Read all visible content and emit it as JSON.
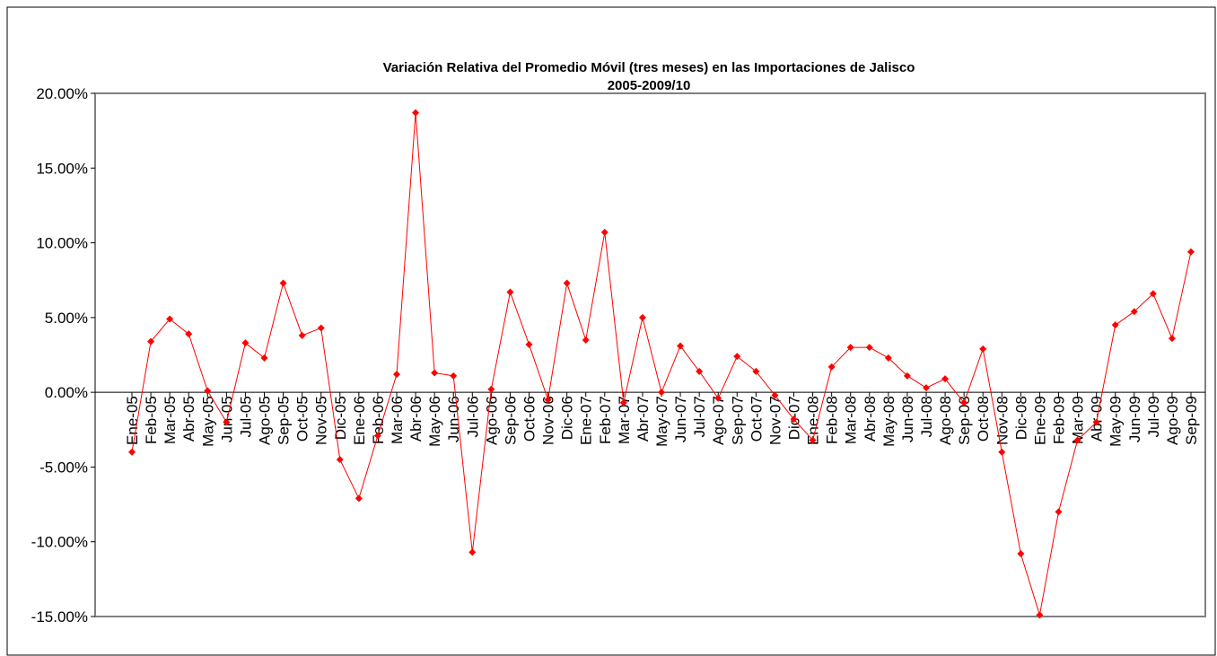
{
  "chart_data": {
    "type": "line",
    "title": "Variación Relativa del Promedio Móvil (tres meses) en las Importaciones de Jalisco",
    "subtitle": "2005-2009/10",
    "categories": [
      "Ene-05",
      "Feb-05",
      "Mar-05",
      "Abr-05",
      "May-05",
      "Jun-05",
      "Jul-05",
      "Ago-05",
      "Sep-05",
      "Oct-05",
      "Nov-05",
      "Dic-05",
      "Ene-06",
      "Feb-06",
      "Mar-06",
      "Abr-06",
      "May-06",
      "Jun-06",
      "Jul-06",
      "Ago-06",
      "Sep-06",
      "Oct-06",
      "Nov-06",
      "Dic-06",
      "Ene-07",
      "Feb-07",
      "Mar-07",
      "Abr-07",
      "May-07",
      "Jun-07",
      "Jul-07",
      "Ago-07",
      "Sep-07",
      "Oct-07",
      "Nov-07",
      "Dic-07",
      "Ene-08",
      "Feb-08",
      "Mar-08",
      "Abr-08",
      "May-08",
      "Jun-08",
      "Jul-08",
      "Ago-08",
      "Sep-08",
      "Oct-08",
      "Nov-08",
      "Dic-08",
      "Ene-09",
      "Feb-09",
      "Mar-09",
      "Abr-09",
      "May-09",
      "Jun-09",
      "Jul-09",
      "Ago-09",
      "Sep-09"
    ],
    "values": [
      -4.0,
      3.4,
      4.9,
      3.9,
      0.1,
      -2.0,
      3.3,
      2.3,
      7.3,
      3.8,
      4.3,
      -4.5,
      -7.1,
      -2.9,
      1.2,
      18.7,
      1.3,
      1.1,
      -10.7,
      0.2,
      6.7,
      3.2,
      -0.5,
      7.3,
      3.5,
      10.7,
      -0.7,
      5.0,
      0.0,
      3.1,
      1.4,
      -0.4,
      2.4,
      1.4,
      -0.2,
      -1.8,
      -3.2,
      1.7,
      3.0,
      3.0,
      2.3,
      1.1,
      0.3,
      0.9,
      -0.7,
      2.9,
      -4.0,
      -10.8,
      -14.9,
      -8.0,
      -3.2,
      -2.0,
      4.5,
      5.4,
      6.6,
      3.6,
      9.4
    ],
    "color": "#ff0000",
    "ylim": [
      -15,
      20
    ],
    "yticks": [
      {
        "value": 20,
        "label": "20.00%"
      },
      {
        "value": 15,
        "label": "15.00%"
      },
      {
        "value": 10,
        "label": "10.00%"
      },
      {
        "value": 5,
        "label": "5.00%"
      },
      {
        "value": 0,
        "label": "0.00%"
      },
      {
        "value": -5,
        "label": "-5.00%"
      },
      {
        "value": -10,
        "label": "-10.00%"
      },
      {
        "value": -15,
        "label": "-15.00%"
      }
    ]
  }
}
